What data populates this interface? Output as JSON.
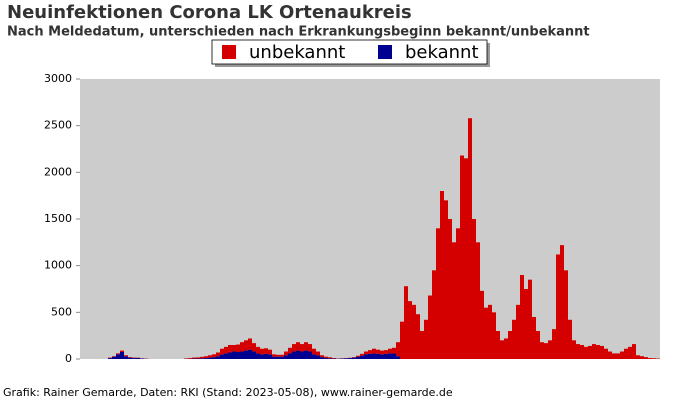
{
  "chart_data": {
    "type": "stacked-bar",
    "title": "Neuinfektionen Corona LK Ortenaukreis",
    "subtitle": "Nach Meldedatum, unterschieden nach Erkrankungsbeginn bekannt/unbekannt",
    "footer": "Grafik: Rainer Gemarde, Daten: RKI (Stand: 2023-05-08), www.rainer-gemarde.de",
    "categories": [
      null,
      null,
      null,
      null,
      null,
      null,
      null,
      null,
      null,
      null,
      null,
      null,
      null,
      null,
      null,
      null,
      null,
      null,
      null,
      null,
      null,
      null,
      null,
      null,
      null,
      null,
      null,
      null,
      null,
      null,
      null,
      null,
      null,
      null,
      null,
      null,
      null,
      null,
      null,
      null,
      null,
      null,
      null,
      null,
      null,
      null,
      null,
      null,
      null,
      null,
      null,
      null,
      null,
      null,
      null,
      null,
      null,
      null,
      null,
      null,
      null,
      null,
      null,
      null,
      null,
      null,
      null,
      null,
      null,
      null,
      null,
      null,
      null,
      null,
      null,
      null,
      null,
      null,
      null,
      null,
      null,
      null,
      null,
      null,
      null,
      null,
      null,
      null,
      null,
      null,
      null,
      null,
      null,
      null,
      null,
      null,
      null,
      null,
      null,
      null,
      null,
      null,
      null,
      null,
      null,
      null,
      null,
      null,
      null,
      null,
      null,
      null,
      null,
      null,
      null,
      null,
      null,
      null,
      null,
      null,
      null,
      null,
      null,
      null,
      null,
      null,
      null,
      null,
      null,
      null,
      null,
      null,
      null,
      null,
      null,
      null,
      null,
      null,
      null,
      null,
      null,
      null,
      null,
      null,
      null
    ],
    "series": [
      {
        "name": "unbekannt",
        "color": "#d40000",
        "values": [
          0,
          0,
          0,
          0,
          0,
          0,
          0,
          5,
          5,
          10,
          15,
          10,
          5,
          5,
          3,
          2,
          2,
          0,
          0,
          0,
          0,
          0,
          0,
          0,
          0,
          0,
          5,
          8,
          10,
          12,
          15,
          20,
          25,
          30,
          40,
          60,
          70,
          80,
          70,
          80,
          100,
          110,
          120,
          90,
          70,
          60,
          60,
          50,
          25,
          20,
          20,
          40,
          60,
          80,
          90,
          80,
          90,
          80,
          60,
          40,
          20,
          15,
          10,
          5,
          3,
          2,
          2,
          3,
          5,
          10,
          20,
          30,
          40,
          50,
          45,
          40,
          40,
          50,
          60,
          150,
          400,
          780,
          620,
          580,
          480,
          300,
          420,
          680,
          950,
          1400,
          1800,
          1700,
          1500,
          1250,
          1400,
          2180,
          2150,
          2580,
          1500,
          1250,
          730,
          550,
          580,
          500,
          300,
          200,
          220,
          300,
          420,
          580,
          900,
          750,
          850,
          450,
          300,
          180,
          170,
          200,
          320,
          1120,
          1220,
          950,
          420,
          200,
          160,
          150,
          130,
          140,
          160,
          150,
          140,
          110,
          80,
          60,
          60,
          80,
          110,
          130,
          160,
          40,
          30,
          20,
          10,
          8,
          5
        ]
      },
      {
        "name": "bekannt",
        "color": "#000090",
        "values": [
          0,
          0,
          0,
          0,
          0,
          0,
          0,
          10,
          25,
          50,
          75,
          30,
          15,
          10,
          12,
          5,
          3,
          0,
          0,
          0,
          0,
          0,
          0,
          0,
          0,
          0,
          2,
          3,
          5,
          5,
          8,
          10,
          15,
          20,
          30,
          50,
          60,
          70,
          80,
          75,
          80,
          90,
          100,
          80,
          60,
          50,
          55,
          50,
          25,
          25,
          25,
          40,
          60,
          80,
          90,
          80,
          90,
          80,
          50,
          40,
          20,
          10,
          8,
          5,
          3,
          5,
          8,
          10,
          15,
          25,
          35,
          50,
          55,
          60,
          55,
          50,
          55,
          60,
          60,
          30,
          0,
          0,
          0,
          0,
          0,
          0,
          0,
          0,
          0,
          0,
          0,
          0,
          0,
          0,
          0,
          0,
          0,
          0,
          0,
          0,
          0,
          0,
          0,
          0,
          0,
          0,
          0,
          0,
          0,
          0,
          0,
          0,
          0,
          0,
          0,
          0,
          0,
          0,
          0,
          0,
          0,
          0,
          0,
          0,
          0,
          0,
          0,
          0,
          0,
          0,
          0,
          0,
          0,
          0,
          0,
          0,
          0,
          0,
          0,
          0,
          0,
          0,
          0,
          0,
          0
        ]
      }
    ],
    "ylim": [
      0,
      3000
    ],
    "yticks": [
      0,
      500,
      1000,
      1500,
      2000,
      2500,
      3000
    ],
    "plot_background": "#cccccc",
    "grid": false
  }
}
